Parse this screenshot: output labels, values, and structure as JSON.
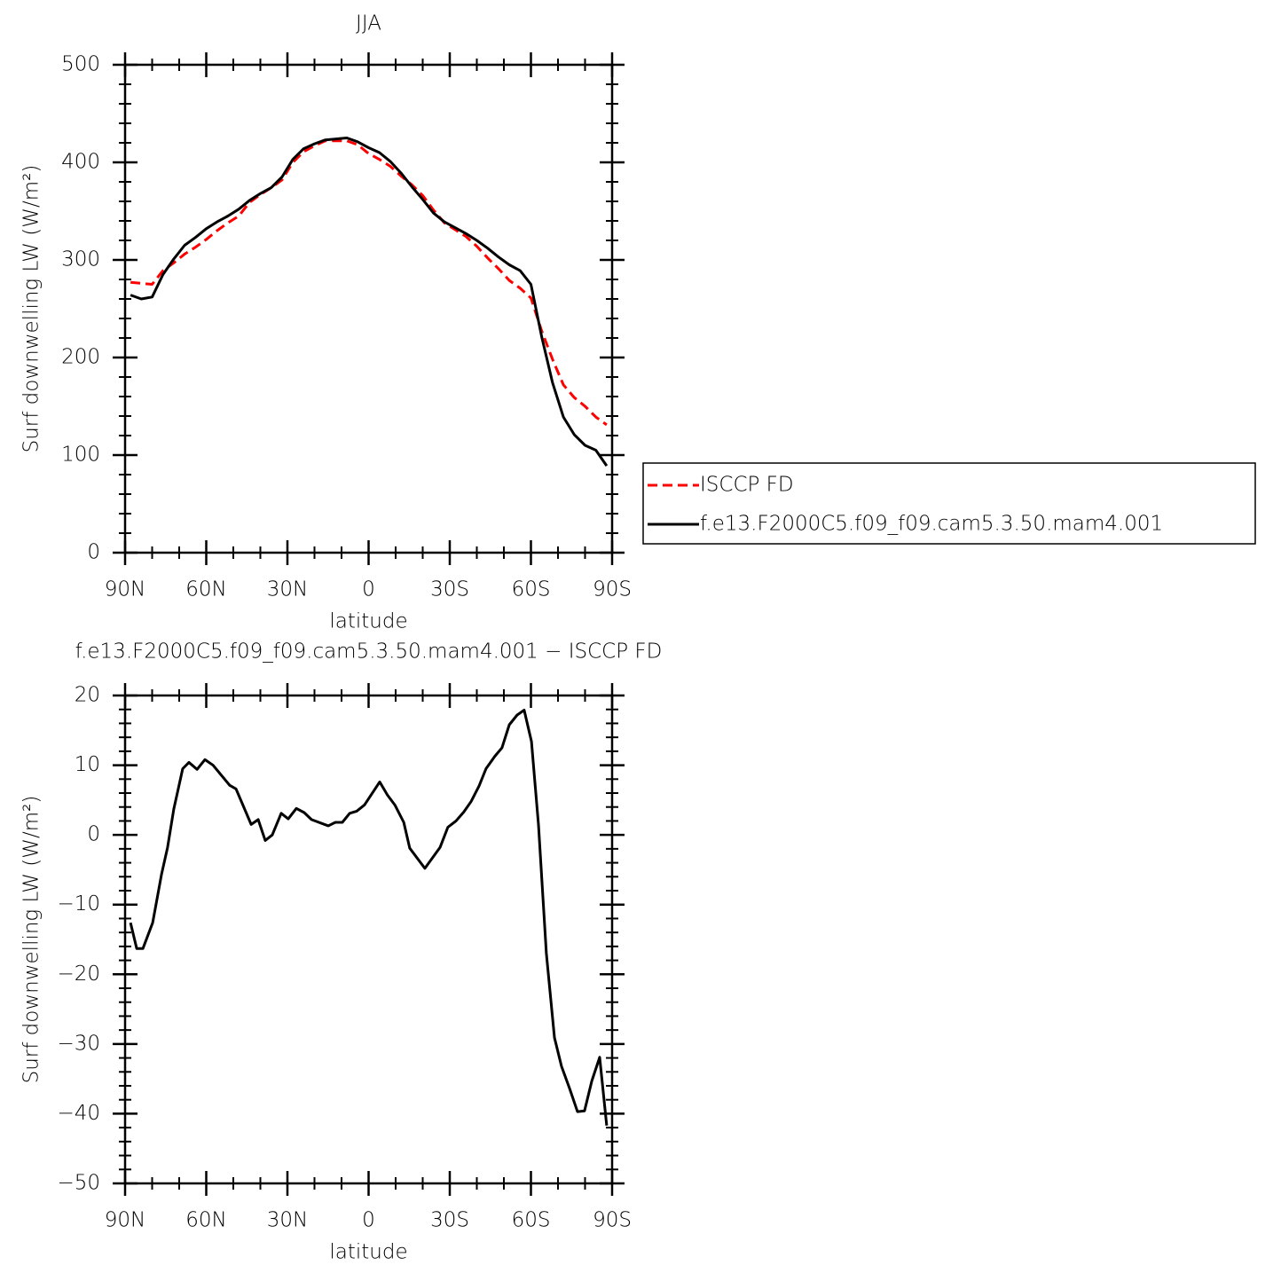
{
  "chart_data": [
    {
      "type": "line",
      "title": "JJA",
      "xlabel": "latitude",
      "ylabel": "Surf downwelling LW (W/m²)",
      "x": [
        88,
        84,
        80,
        76,
        72,
        68,
        64,
        60,
        56,
        52,
        48,
        44,
        40,
        36,
        32,
        28,
        24,
        20,
        16,
        12,
        8,
        4,
        0,
        -4,
        -8,
        -12,
        -16,
        -20,
        -24,
        -28,
        -32,
        -36,
        -40,
        -44,
        -48,
        -52,
        -56,
        -60,
        -64,
        -68,
        -72,
        -76,
        -80,
        -84,
        -88
      ],
      "series": [
        {
          "name": "ISCCP FD",
          "color": "#ff0000",
          "linestyle": "dashed",
          "values": [
            277,
            276,
            275,
            289,
            297,
            306,
            313,
            321,
            330,
            338,
            345,
            359,
            367,
            374,
            382,
            400,
            411,
            417,
            422,
            422,
            422,
            418,
            409,
            403,
            396,
            386,
            377,
            366,
            351,
            338,
            331,
            324,
            314,
            302,
            291,
            279,
            271,
            261,
            227,
            198,
            172,
            159,
            150,
            139,
            131
          ]
        },
        {
          "name": "f.e13.F2000C5.f09_f09.cam5.3.50.mam4.001",
          "color": "#000000",
          "linestyle": "solid",
          "values": [
            264,
            260,
            262,
            285,
            301,
            315,
            323,
            332,
            339,
            345,
            352,
            361,
            368,
            374,
            385,
            403,
            414,
            419,
            423,
            424,
            425,
            421,
            415,
            410,
            401,
            389,
            375,
            362,
            348,
            339,
            333,
            327,
            320,
            312,
            303,
            295,
            289,
            275,
            221,
            174,
            139,
            121,
            110,
            105,
            89
          ]
        }
      ],
      "xlim": [
        90,
        -90
      ],
      "ylim": [
        0,
        500
      ],
      "xticks": [
        {
          "value": 90,
          "label": "90N"
        },
        {
          "value": 60,
          "label": "60N"
        },
        {
          "value": 30,
          "label": "30N"
        },
        0,
        {
          "value": -30,
          "label": "30S"
        },
        {
          "value": -60,
          "label": "60S"
        },
        {
          "value": -90,
          "label": "90S"
        }
      ],
      "yticks": [
        0,
        100,
        200,
        300,
        400,
        500
      ],
      "legend": "right"
    },
    {
      "type": "line",
      "title": "f.e13.F2000C5.f09_f09.cam5.3.50.mam4.001 − ISCCP FD",
      "xlabel": "latitude",
      "ylabel": "Surf downwelling LW (W/m²)",
      "x": [
        88.0,
        85.7,
        83.4,
        79.8,
        76.5,
        74.3,
        72.0,
        68.7,
        66.4,
        63.4,
        60.5,
        57.5,
        51.3,
        49.0,
        43.4,
        40.8,
        38.2,
        35.6,
        32.3,
        29.7,
        26.7,
        23.8,
        21.1,
        14.9,
        12.3,
        9.7,
        7.0,
        4.4,
        1.5,
        -4.1,
        -7.0,
        -9.7,
        -13.0,
        -15.2,
        -20.8,
        -26.4,
        -29.3,
        -32.3,
        -35.2,
        -37.9,
        -40.8,
        -43.4,
        -46.7,
        -49.3,
        -52.0,
        -54.9,
        -57.5,
        -60.2,
        -62.8,
        -65.7,
        -68.7,
        -71.3,
        -74.3,
        -77.2,
        -79.8,
        -82.5,
        -85.4,
        -88.0
      ],
      "values": [
        -12.6,
        -16.3,
        -16.3,
        -12.6,
        -5.6,
        -1.8,
        3.7,
        9.5,
        10.4,
        9.4,
        10.8,
        10.0,
        7.1,
        6.6,
        1.5,
        2.2,
        -0.8,
        0,
        3.1,
        2.3,
        3.8,
        3.2,
        2.2,
        1.3,
        1.8,
        1.8,
        3.1,
        3.4,
        4.3,
        7.6,
        5.7,
        4.3,
        1.8,
        -1.9,
        -4.8,
        -1.8,
        1.1,
        2.0,
        3.3,
        4.8,
        7.0,
        9.5,
        11.3,
        12.5,
        15.8,
        17.2,
        17.9,
        13.4,
        1.4,
        -17.0,
        -29.1,
        -33.2,
        -36.4,
        -39.7,
        -39.6,
        -35.3,
        -31.9,
        -41.7
      ],
      "color": "#000000",
      "xlim": [
        90,
        -90
      ],
      "ylim": [
        -50,
        20
      ],
      "xticks": [
        {
          "value": 90,
          "label": "90N"
        },
        {
          "value": 60,
          "label": "60N"
        },
        {
          "value": 30,
          "label": "30N"
        },
        0,
        {
          "value": -30,
          "label": "30S"
        },
        {
          "value": -60,
          "label": "60S"
        },
        {
          "value": -90,
          "label": "90S"
        }
      ],
      "yticks": [
        {
          "value": -50,
          "label": "−50"
        },
        {
          "value": -40,
          "label": "−40"
        },
        {
          "value": -30,
          "label": "−30"
        },
        {
          "value": -20,
          "label": "−20"
        },
        {
          "value": -10,
          "label": "−10"
        },
        0,
        10,
        20
      ]
    }
  ]
}
